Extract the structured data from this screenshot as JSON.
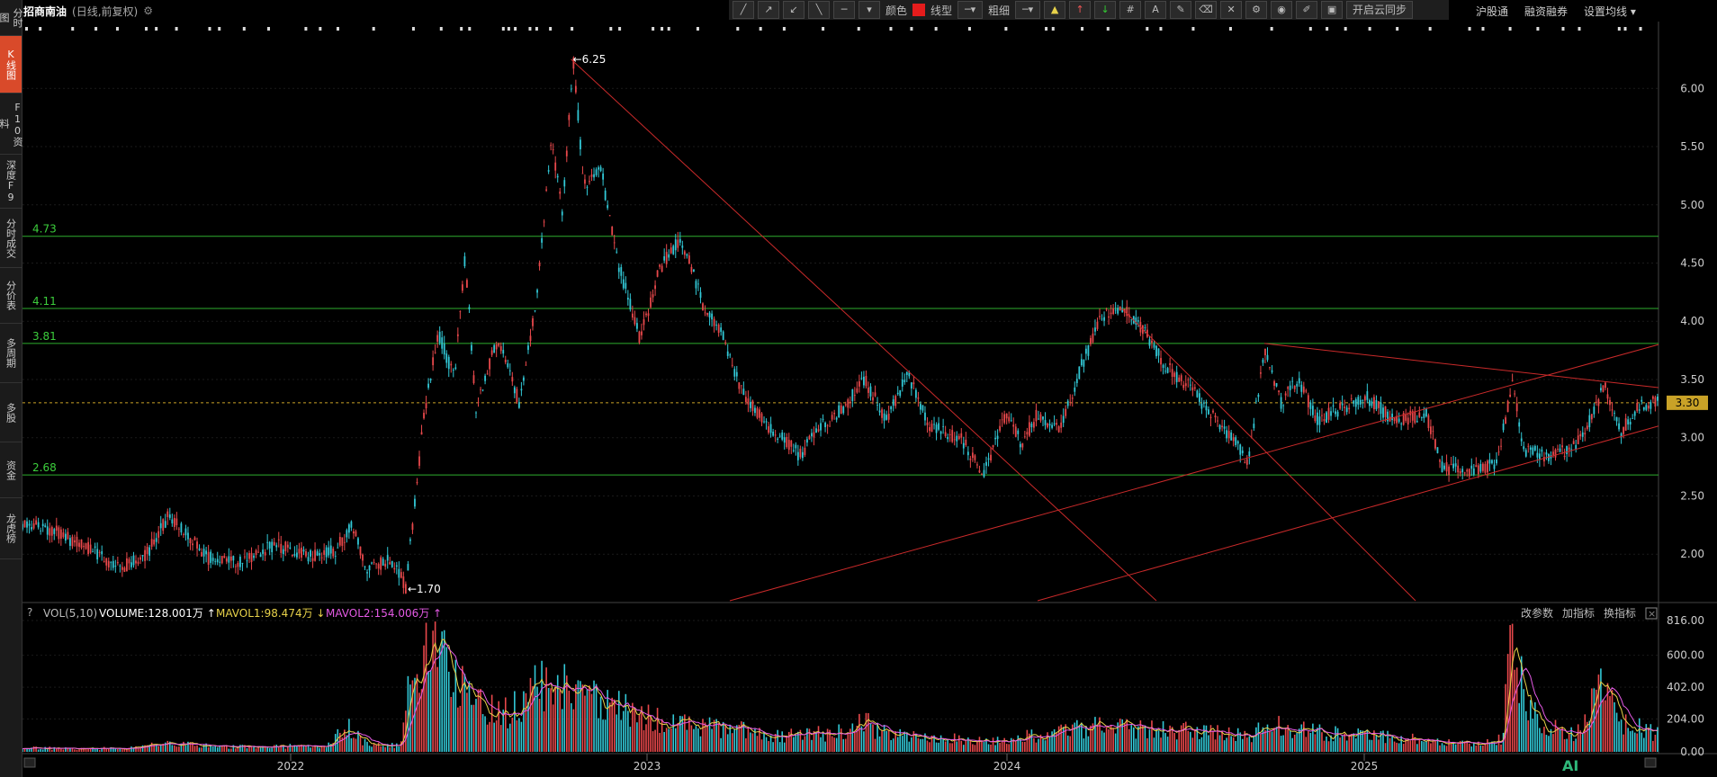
{
  "title": {
    "stock_name": "招商南油",
    "mode": "(日线,前复权)"
  },
  "sidebar": [
    {
      "label": "分时图"
    },
    {
      "label": "K线图",
      "active": true
    },
    {
      "label": "F10资料"
    },
    {
      "label": "深度F9"
    },
    {
      "label": "分时成交"
    },
    {
      "label": "分价表"
    },
    {
      "label": "多周期"
    },
    {
      "label": "多股"
    },
    {
      "label": "资金"
    },
    {
      "label": "龙虎榜"
    }
  ],
  "toolbar": {
    "color_label": "颜色",
    "color_value": "#e51c1c",
    "line_type_label": "线型",
    "line_width_label": "粗细",
    "cloud_sync_label": "开启云同步"
  },
  "topnav": {
    "items": [
      "沪股通",
      "融资融券",
      "设置均线 ▾"
    ]
  },
  "volume_panel": {
    "title": "VOL(5,10)",
    "volume": "VOLUME:128.001万 ↑",
    "mavol1": "MAVOL1:98.474万 ↓",
    "mavol2": "MAVOL2:154.006万 ↑",
    "buttons": [
      "改参数",
      "加指标",
      "换指标"
    ]
  },
  "ai_badge": "AI",
  "chart_data": {
    "type": "candlestick",
    "price_axis": {
      "ticks": [
        2.0,
        2.5,
        3.0,
        3.5,
        4.0,
        4.5,
        5.0,
        5.5,
        6.0
      ],
      "range": [
        1.6,
        6.45
      ]
    },
    "last_price": "3.30",
    "x_labels": [
      "2022",
      "2023",
      "2024",
      "2025"
    ],
    "horizontal_lines": [
      {
        "label": "4.73",
        "value": 4.73
      },
      {
        "label": "4.11",
        "value": 4.11
      },
      {
        "label": "3.81",
        "value": 3.81
      },
      {
        "label": "2.68",
        "value": 2.68
      }
    ],
    "annotations": [
      {
        "label": "6.25",
        "value": 6.25
      },
      {
        "label": "1.70",
        "value": 1.7
      }
    ],
    "price_path": [
      [
        0,
        2.27
      ],
      [
        30,
        2.2
      ],
      [
        60,
        2.05
      ],
      [
        90,
        1.88
      ],
      [
        115,
        2.0
      ],
      [
        135,
        2.32
      ],
      [
        150,
        2.2
      ],
      [
        170,
        1.97
      ],
      [
        200,
        1.93
      ],
      [
        235,
        2.08
      ],
      [
        265,
        1.98
      ],
      [
        290,
        2.04
      ],
      [
        305,
        2.25
      ],
      [
        320,
        1.85
      ],
      [
        340,
        1.96
      ],
      [
        355,
        1.72
      ],
      [
        365,
        2.6
      ],
      [
        372,
        3.2
      ],
      [
        385,
        3.9
      ],
      [
        400,
        3.5
      ],
      [
        410,
        4.55
      ],
      [
        420,
        3.25
      ],
      [
        440,
        3.85
      ],
      [
        460,
        3.3
      ],
      [
        475,
        4.1
      ],
      [
        490,
        5.55
      ],
      [
        500,
        4.95
      ],
      [
        510,
        6.25
      ],
      [
        520,
        5.15
      ],
      [
        535,
        5.35
      ],
      [
        550,
        4.55
      ],
      [
        572,
        3.85
      ],
      [
        590,
        4.45
      ],
      [
        610,
        4.72
      ],
      [
        630,
        4.15
      ],
      [
        650,
        3.85
      ],
      [
        665,
        3.4
      ],
      [
        690,
        3.1
      ],
      [
        720,
        2.85
      ],
      [
        740,
        3.1
      ],
      [
        760,
        3.25
      ],
      [
        780,
        3.5
      ],
      [
        800,
        3.15
      ],
      [
        820,
        3.55
      ],
      [
        840,
        3.1
      ],
      [
        870,
        2.98
      ],
      [
        890,
        2.68
      ],
      [
        910,
        3.2
      ],
      [
        925,
        2.95
      ],
      [
        940,
        3.2
      ],
      [
        960,
        3.05
      ],
      [
        980,
        3.6
      ],
      [
        1000,
        4.05
      ],
      [
        1020,
        4.1
      ],
      [
        1040,
        3.9
      ],
      [
        1060,
        3.6
      ],
      [
        1080,
        3.45
      ],
      [
        1100,
        3.2
      ],
      [
        1120,
        3.0
      ],
      [
        1135,
        2.78
      ],
      [
        1150,
        3.75
      ],
      [
        1165,
        3.3
      ],
      [
        1180,
        3.5
      ],
      [
        1200,
        3.15
      ],
      [
        1220,
        3.25
      ],
      [
        1245,
        3.35
      ],
      [
        1270,
        3.15
      ],
      [
        1300,
        3.2
      ],
      [
        1315,
        2.75
      ],
      [
        1340,
        2.7
      ],
      [
        1365,
        2.78
      ],
      [
        1380,
        3.48
      ],
      [
        1390,
        2.9
      ],
      [
        1410,
        2.85
      ],
      [
        1435,
        2.9
      ],
      [
        1455,
        3.2
      ],
      [
        1465,
        3.47
      ],
      [
        1480,
        3.05
      ],
      [
        1495,
        3.25
      ],
      [
        1510,
        3.3
      ]
    ],
    "volume_axis": {
      "ticks": [
        "0.00",
        "204.00",
        "402.00",
        "600.00",
        "816.00"
      ],
      "max": 816
    },
    "volume_path": [
      [
        0,
        25
      ],
      [
        50,
        20
      ],
      [
        100,
        24
      ],
      [
        140,
        60
      ],
      [
        160,
        40
      ],
      [
        200,
        30
      ],
      [
        280,
        40
      ],
      [
        300,
        160
      ],
      [
        320,
        40
      ],
      [
        350,
        40
      ],
      [
        360,
        520
      ],
      [
        370,
        570
      ],
      [
        380,
        640
      ],
      [
        395,
        480
      ],
      [
        410,
        380
      ],
      [
        430,
        250
      ],
      [
        455,
        260
      ],
      [
        470,
        360
      ],
      [
        490,
        420
      ],
      [
        520,
        330
      ],
      [
        560,
        250
      ],
      [
        600,
        180
      ],
      [
        650,
        150
      ],
      [
        700,
        100
      ],
      [
        760,
        120
      ],
      [
        780,
        180
      ],
      [
        800,
        110
      ],
      [
        860,
        80
      ],
      [
        900,
        70
      ],
      [
        950,
        110
      ],
      [
        990,
        160
      ],
      [
        1050,
        140
      ],
      [
        1100,
        120
      ],
      [
        1140,
        100
      ],
      [
        1150,
        190
      ],
      [
        1170,
        140
      ],
      [
        1220,
        110
      ],
      [
        1270,
        90
      ],
      [
        1330,
        50
      ],
      [
        1370,
        80
      ],
      [
        1380,
        700
      ],
      [
        1390,
        360
      ],
      [
        1410,
        150
      ],
      [
        1440,
        110
      ],
      [
        1460,
        380
      ],
      [
        1480,
        200
      ],
      [
        1510,
        120
      ]
    ],
    "trend_lines": [
      {
        "from": [
          508,
          6.25
        ],
        "to": [
          1050,
          1.6
        ]
      },
      {
        "from": [
          1018,
          4.11
        ],
        "to": [
          1290,
          1.6
        ]
      },
      {
        "from": [
          1150,
          3.81
        ],
        "to": [
          1515,
          3.43
        ]
      },
      {
        "from": [
          655,
          1.6
        ],
        "to": [
          1515,
          3.8
        ]
      },
      {
        "from": [
          940,
          1.6
        ],
        "to": [
          1515,
          3.1
        ]
      }
    ]
  }
}
